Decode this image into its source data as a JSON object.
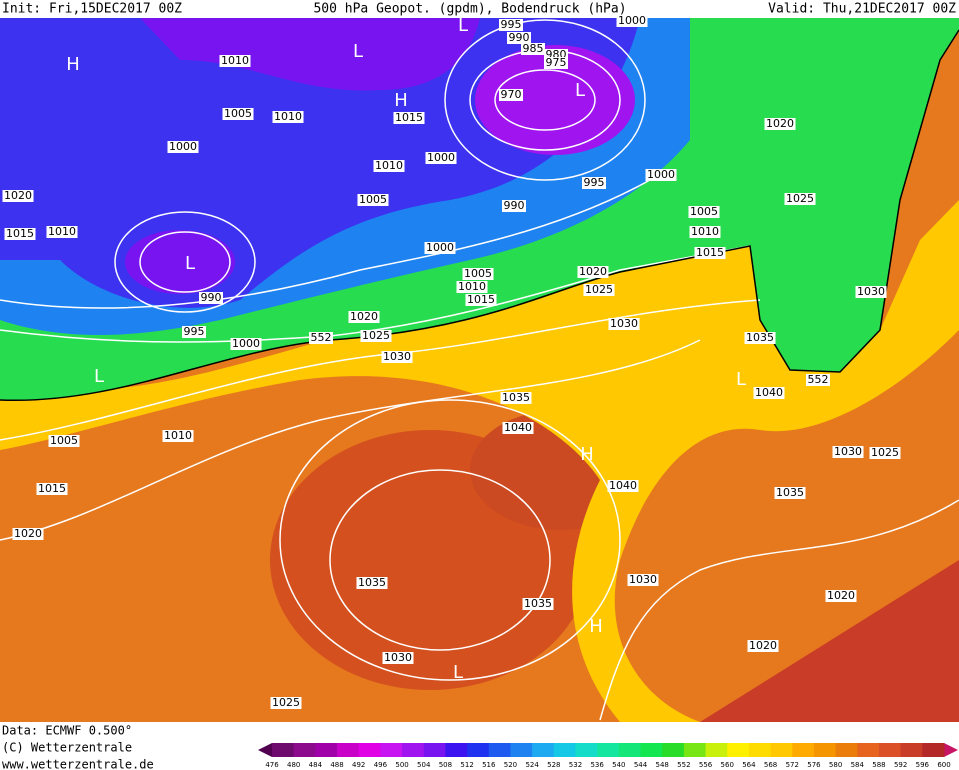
{
  "header": {
    "init": "Init: Fri,15DEC2017 00Z",
    "title": "500 hPa Geopot. (gpdm), Bodendruck (hPa)",
    "valid": "Valid: Thu,21DEC2017 00Z"
  },
  "footer": {
    "data": "Data: ECMWF   0.500°",
    "copyright": "(C) Wetterzentrale",
    "url": "www.wetterzentrale.de"
  },
  "map": {
    "isobar_labels": [
      1010,
      1005,
      1010,
      1000,
      1020,
      1015,
      1010,
      990,
      995,
      1000,
      1015,
      1010,
      1005,
      1000,
      1000,
      1005,
      1010,
      1015,
      1020,
      1025,
      1030,
      995,
      990,
      985,
      980,
      975,
      970,
      1000,
      995,
      990,
      1000,
      1005,
      1010,
      1015,
      1020,
      1025,
      1030,
      1020,
      1025,
      1030,
      1035,
      1040,
      1035,
      1040,
      1040,
      1035,
      1030,
      1025,
      1005,
      1010,
      1015,
      1020,
      1035,
      1035,
      1030,
      1020,
      1020,
      1030,
      1025,
      552,
      552
    ],
    "pressure_centers": [
      "H",
      "L",
      "L",
      "H",
      "L",
      "L",
      "L",
      "H",
      "L",
      "H",
      "L"
    ]
  },
  "colorbar": {
    "labels": [
      476,
      480,
      484,
      488,
      492,
      496,
      500,
      504,
      508,
      512,
      516,
      520,
      524,
      528,
      532,
      536,
      540,
      544,
      548,
      552,
      556,
      560,
      564,
      568,
      572,
      576,
      580,
      584,
      588,
      592,
      596,
      600
    ],
    "colors": [
      "#6e0a6e",
      "#8c0a8c",
      "#a000a8",
      "#c800c8",
      "#e100e6",
      "#c814f0",
      "#a014f0",
      "#7814f0",
      "#3c14f0",
      "#1e32f0",
      "#1e5af0",
      "#1e82f0",
      "#1eaaf0",
      "#14c8e6",
      "#14dcc8",
      "#14e6a0",
      "#14e678",
      "#14e650",
      "#28dc28",
      "#78e614",
      "#c8f00a",
      "#fff000",
      "#ffdc00",
      "#ffc800",
      "#ffaa00",
      "#f59600",
      "#eb7d0a",
      "#e6641e",
      "#dc5028",
      "#c83c28",
      "#b42828"
    ],
    "end_colors": [
      "#50004f",
      "#c81464"
    ]
  }
}
